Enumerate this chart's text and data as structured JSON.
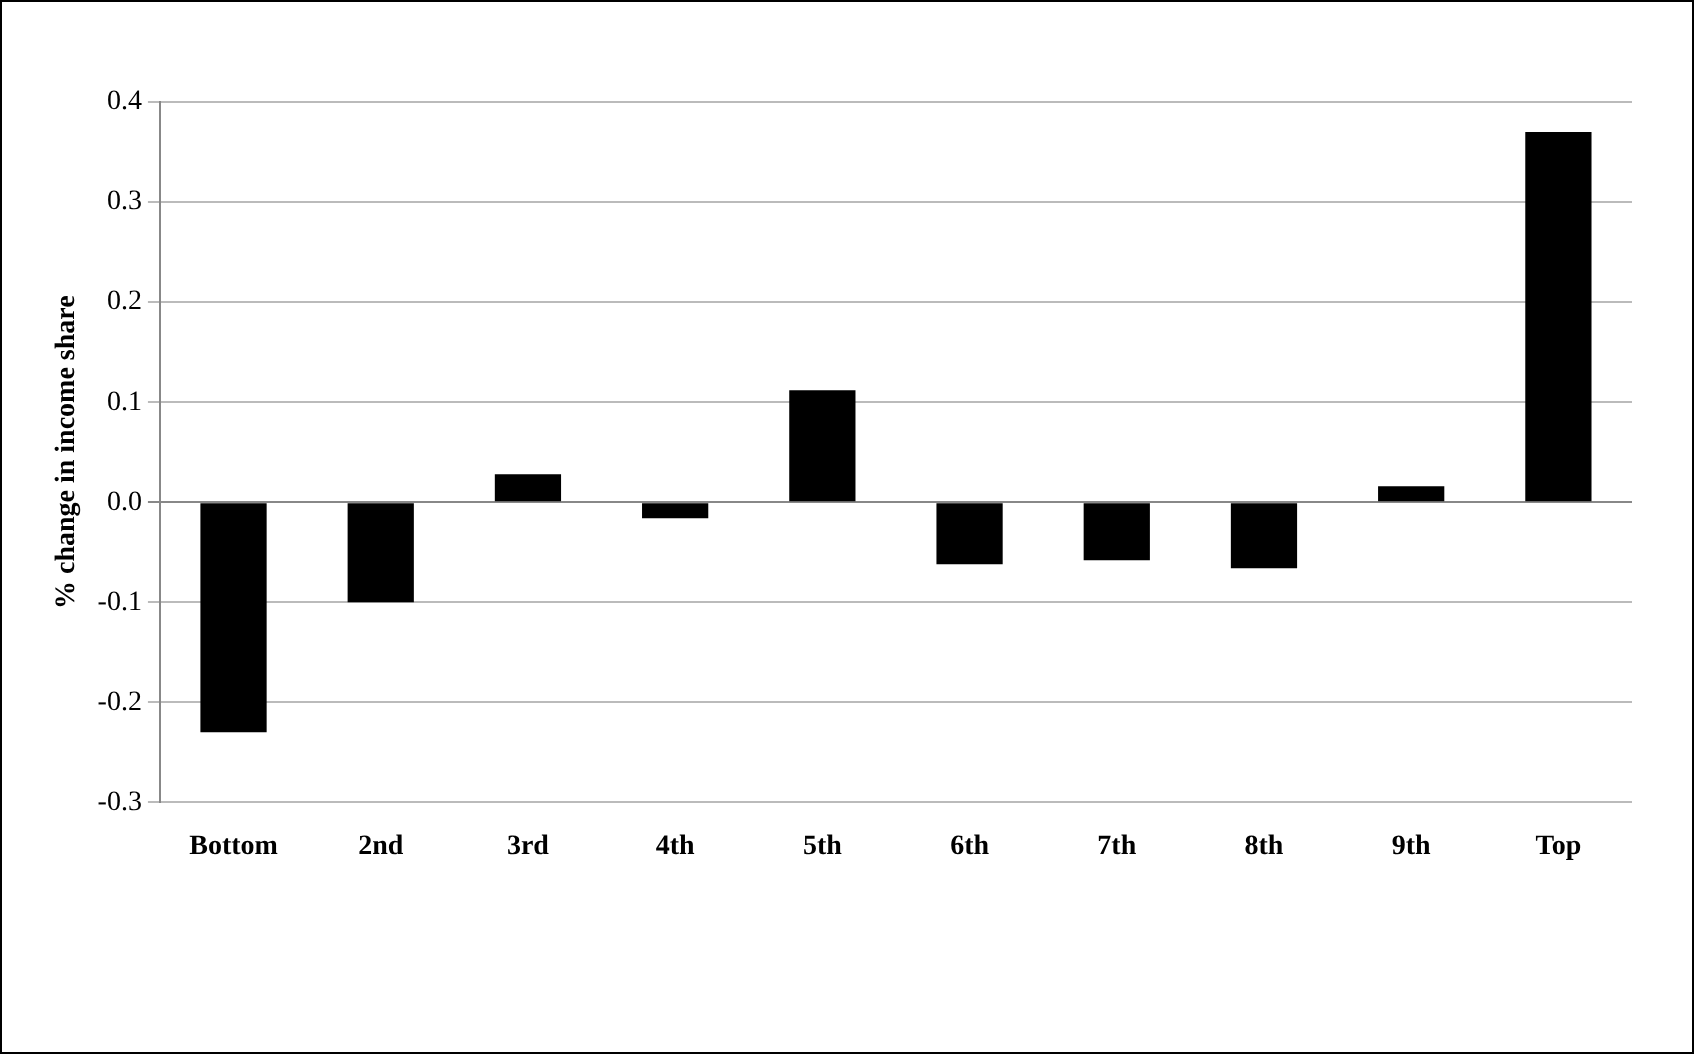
{
  "chart_data": {
    "type": "bar",
    "ylabel": "% change in income share",
    "categories": [
      "Bottom",
      "2nd",
      "3rd",
      "4th",
      "5th",
      "6th",
      "7th",
      "8th",
      "9th",
      "Top"
    ],
    "values": [
      -0.23,
      -0.1,
      0.028,
      -0.016,
      0.112,
      -0.062,
      -0.058,
      -0.066,
      0.016,
      0.37
    ],
    "color": "#000000",
    "ylim": [
      -0.3,
      0.4
    ],
    "yticks": [
      {
        "value": -0.3,
        "label": "-0.3"
      },
      {
        "value": -0.2,
        "label": "-0.2"
      },
      {
        "value": -0.1,
        "label": "-0.1"
      },
      {
        "value": 0,
        "label": "0.0"
      },
      {
        "value": 0.1,
        "label": "0.1"
      },
      {
        "value": 0.2,
        "label": "0.2"
      },
      {
        "value": 0.3,
        "label": "0.3"
      },
      {
        "value": 0.4,
        "label": "0.4"
      }
    ],
    "grid": "y",
    "legend": false
  }
}
